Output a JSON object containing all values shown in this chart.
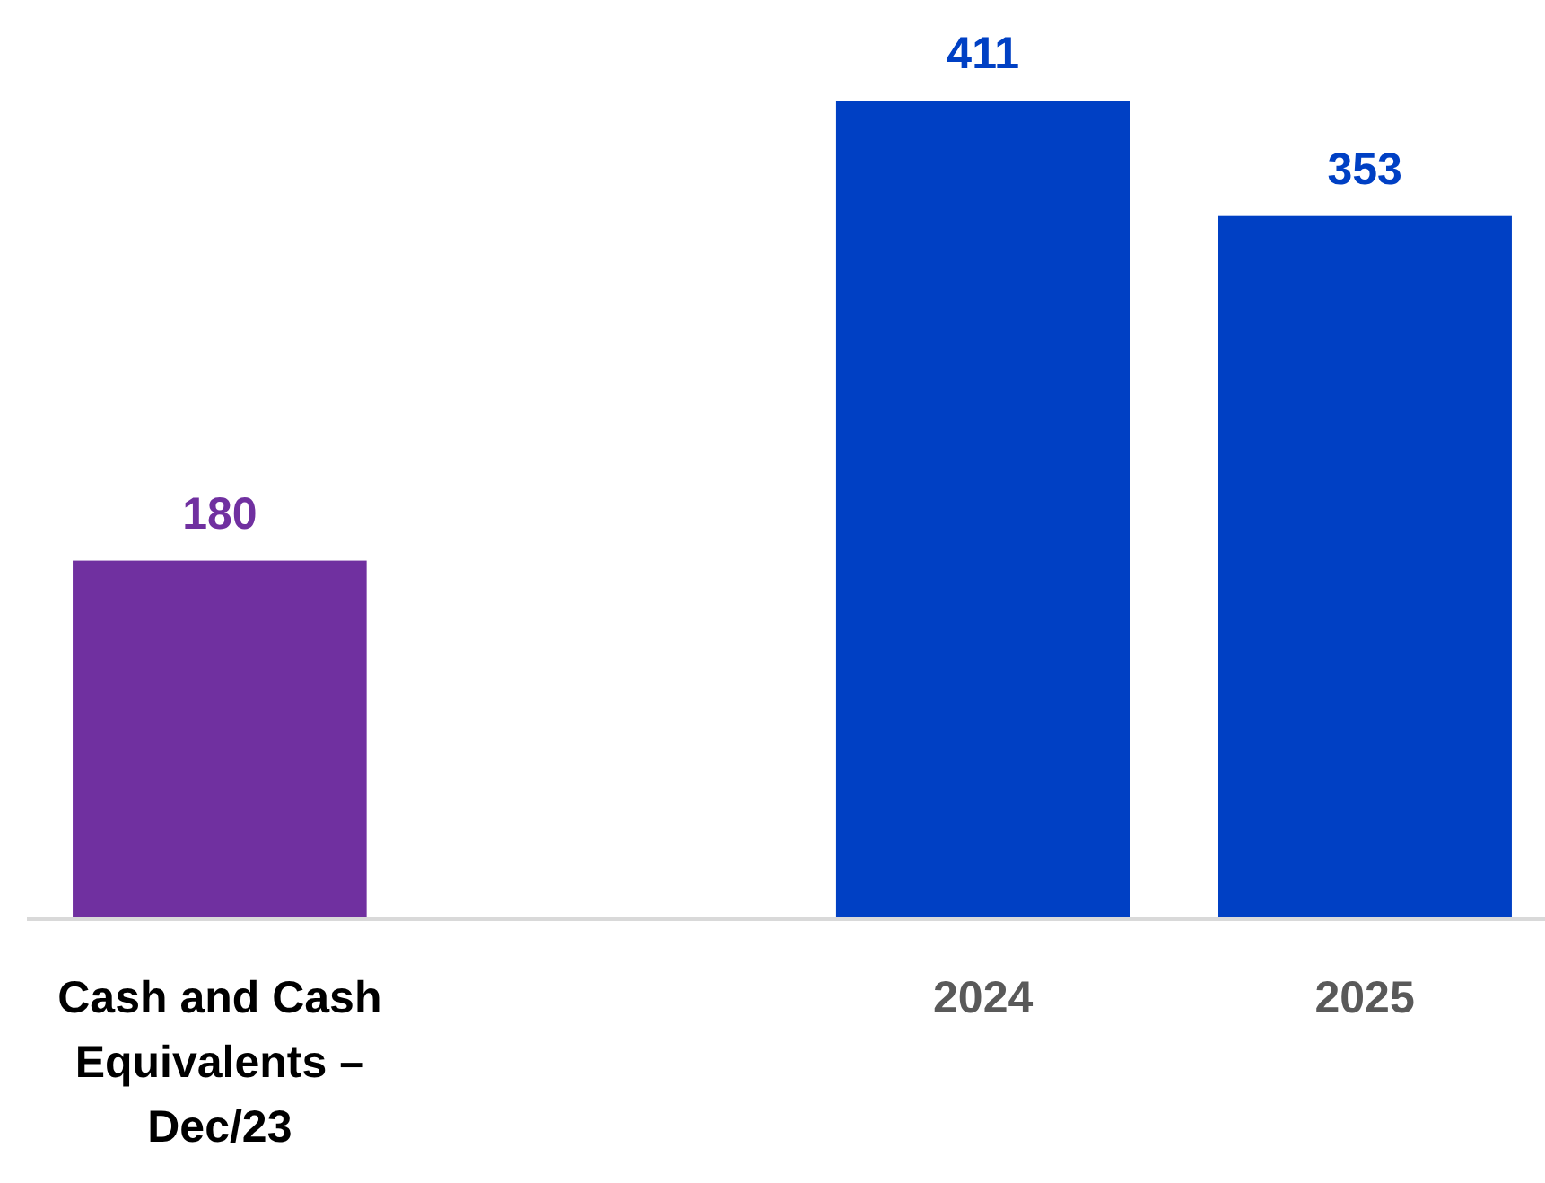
{
  "chart_data": {
    "type": "bar",
    "categories": [
      "Cash and Cash Equivalents – Dec/23",
      null,
      "2024",
      "2025"
    ],
    "values": [
      180,
      null,
      411,
      353
    ],
    "colors": [
      "#7030a0",
      null,
      "#0040c4",
      "#0040c4"
    ],
    "data_labels": true
  }
}
